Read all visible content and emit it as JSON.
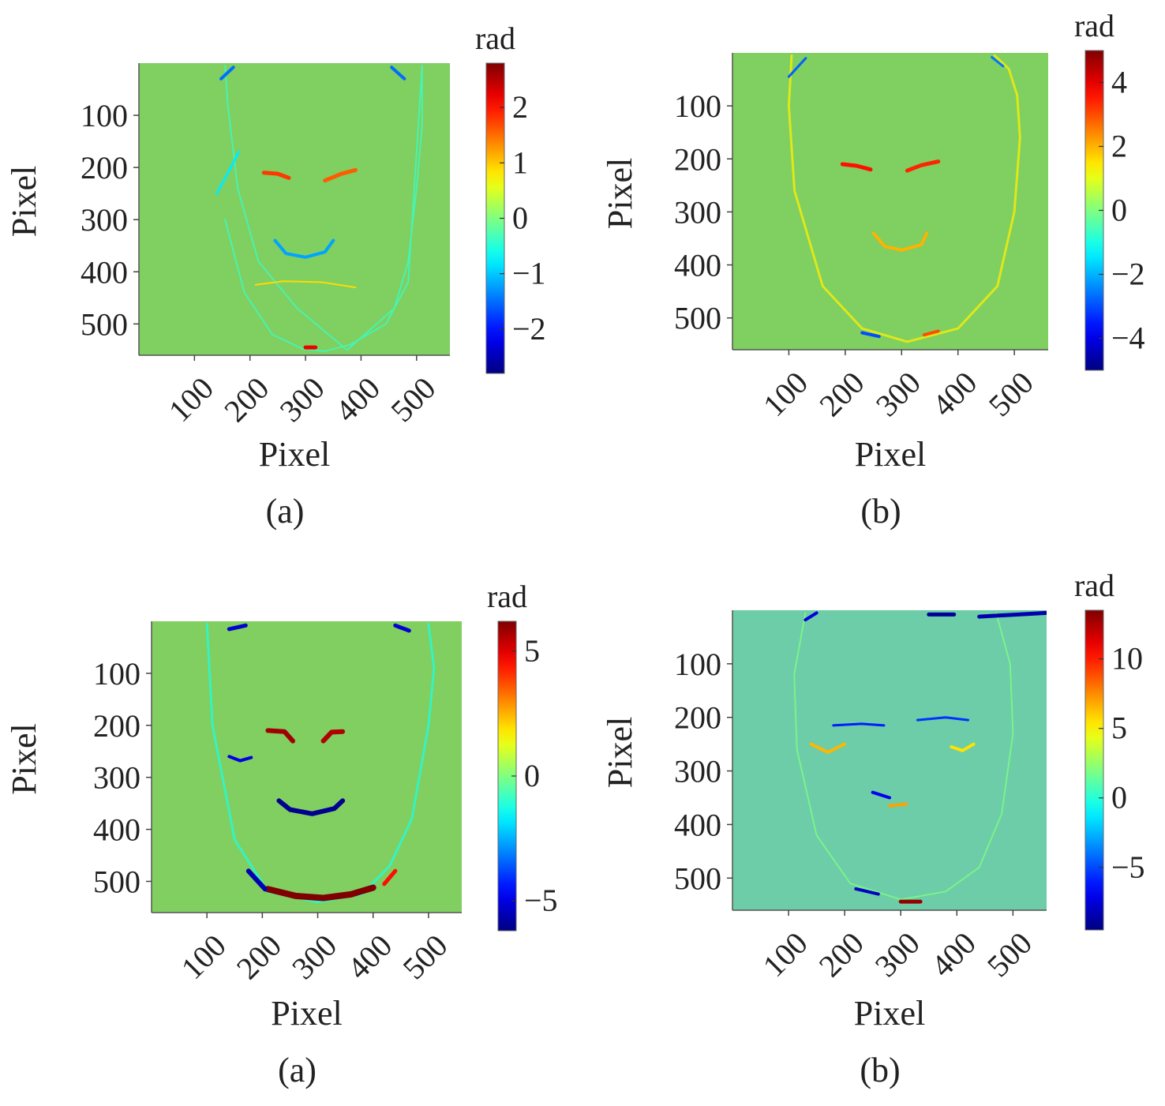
{
  "chart_data": [
    {
      "type": "heatmap",
      "panel_label": "(a)",
      "xlabel": "Pixel",
      "ylabel": "Pixel",
      "xticks": [
        100,
        200,
        300,
        400,
        500
      ],
      "yticks": [
        100,
        200,
        300,
        400,
        500
      ],
      "xlim": [
        0,
        560
      ],
      "ylim": [
        0,
        560
      ],
      "y_reversed": true,
      "colormap": "jet",
      "colorbar": {
        "title": "rad",
        "ticks": [
          -2,
          -1,
          0,
          1,
          2
        ],
        "range": [
          -2.8,
          2.8
        ]
      },
      "background_value": 0.3,
      "background_color": "#7fcf61",
      "features": [
        {
          "kind": "outline",
          "x": [
            155,
            160,
            178,
            215,
            285,
            375,
            460,
            485,
            500,
            510,
            510,
            485,
            445,
            380,
            335,
            295,
            240,
            190,
            155
          ],
          "y": [
            5,
            80,
            240,
            380,
            470,
            550,
            470,
            380,
            240,
            120,
            5,
            420,
            500,
            540,
            552,
            548,
            520,
            440,
            300
          ],
          "value": -0.4,
          "width": 2
        },
        {
          "kind": "stroke",
          "x": [
            140,
            158,
            180
          ],
          "y": [
            250,
            215,
            170
          ],
          "value": -0.8,
          "width": 3
        },
        {
          "kind": "stroke",
          "x": [
            225,
            250,
            270
          ],
          "y": [
            210,
            212,
            220
          ],
          "value": 1.8,
          "width": 5
        },
        {
          "kind": "stroke",
          "x": [
            335,
            365,
            390
          ],
          "y": [
            225,
            212,
            205
          ],
          "value": 1.6,
          "width": 5
        },
        {
          "kind": "stroke",
          "x": [
            245,
            265,
            300,
            335,
            350
          ],
          "y": [
            340,
            365,
            372,
            362,
            340
          ],
          "value": -1.2,
          "width": 4
        },
        {
          "kind": "stroke",
          "x": [
            300,
            318
          ],
          "y": [
            545,
            545
          ],
          "value": 2.2,
          "width": 5
        },
        {
          "kind": "stroke",
          "x": [
            148,
            170
          ],
          "y": [
            30,
            8
          ],
          "value": -1.5,
          "width": 4
        },
        {
          "kind": "stroke",
          "x": [
            455,
            478
          ],
          "y": [
            8,
            30
          ],
          "value": -1.5,
          "width": 4
        },
        {
          "kind": "stroke",
          "x": [
            210,
            260,
            330,
            390
          ],
          "y": [
            425,
            418,
            420,
            430
          ],
          "value": 0.9,
          "width": 2
        }
      ]
    },
    {
      "type": "heatmap",
      "panel_label": "(b)",
      "xlabel": "Pixel",
      "ylabel": "Pixel",
      "xticks": [
        100,
        200,
        300,
        400,
        500
      ],
      "yticks": [
        100,
        200,
        300,
        400,
        500
      ],
      "xlim": [
        0,
        560
      ],
      "ylim": [
        0,
        560
      ],
      "y_reversed": true,
      "colormap": "jet",
      "colorbar": {
        "title": "rad",
        "ticks": [
          -4,
          -2,
          0,
          2,
          4
        ],
        "range": [
          -5,
          5
        ]
      },
      "background_value": 0.5,
      "background_color": "#7fcf61",
      "features": [
        {
          "kind": "outline",
          "x": [
            105,
            100,
            110,
            160,
            230,
            310,
            400,
            470,
            500,
            510,
            505,
            490,
            465
          ],
          "y": [
            5,
            100,
            260,
            440,
            520,
            545,
            520,
            440,
            300,
            160,
            80,
            30,
            5
          ],
          "value": 1.4,
          "width": 3
        },
        {
          "kind": "stroke",
          "x": [
            195,
            220,
            245
          ],
          "y": [
            210,
            213,
            220
          ],
          "value": 3.6,
          "width": 5
        },
        {
          "kind": "stroke",
          "x": [
            310,
            335,
            365
          ],
          "y": [
            222,
            212,
            205
          ],
          "value": 3.4,
          "width": 5
        },
        {
          "kind": "stroke",
          "x": [
            250,
            270,
            300,
            335,
            345
          ],
          "y": [
            340,
            365,
            372,
            362,
            340
          ],
          "value": 2.0,
          "width": 4
        },
        {
          "kind": "stroke",
          "x": [
            230,
            260
          ],
          "y": [
            528,
            535
          ],
          "value": -3.0,
          "width": 4
        },
        {
          "kind": "stroke",
          "x": [
            340,
            365
          ],
          "y": [
            532,
            525
          ],
          "value": 3.0,
          "width": 4
        },
        {
          "kind": "stroke",
          "x": [
            100,
            130
          ],
          "y": [
            45,
            10
          ],
          "value": -2.8,
          "width": 3
        },
        {
          "kind": "stroke",
          "x": [
            460,
            480
          ],
          "y": [
            8,
            25
          ],
          "value": -2.6,
          "width": 3
        }
      ]
    },
    {
      "type": "heatmap",
      "panel_label": "(a)",
      "xlabel": "Pixel",
      "ylabel": "Pixel",
      "xticks": [
        100,
        200,
        300,
        400,
        500
      ],
      "yticks": [
        100,
        200,
        300,
        400,
        500
      ],
      "xlim": [
        0,
        560
      ],
      "ylim": [
        0,
        560
      ],
      "y_reversed": true,
      "colormap": "jet",
      "colorbar": {
        "title": "rad",
        "ticks": [
          -5,
          0,
          5
        ],
        "range": [
          -6.2,
          6.2
        ]
      },
      "background_value": 0.6,
      "background_color": "#80cf60",
      "features": [
        {
          "kind": "outline",
          "x": [
            100,
            110,
            150,
            210,
            300,
            380,
            430,
            470,
            500,
            510,
            500
          ],
          "y": [
            5,
            200,
            420,
            520,
            540,
            525,
            470,
            380,
            200,
            90,
            5
          ],
          "value": -1.2,
          "width": 3
        },
        {
          "kind": "stroke",
          "x": [
            210,
            240,
            255
          ],
          "y": [
            210,
            212,
            230
          ],
          "value": 5.8,
          "width": 6
        },
        {
          "kind": "stroke",
          "x": [
            310,
            325,
            345
          ],
          "y": [
            230,
            213,
            212
          ],
          "value": 5.6,
          "width": 6
        },
        {
          "kind": "stroke",
          "x": [
            140,
            160,
            180
          ],
          "y": [
            260,
            268,
            262
          ],
          "value": -5.0,
          "width": 4
        },
        {
          "kind": "stroke",
          "x": [
            230,
            250,
            290,
            330,
            345
          ],
          "y": [
            345,
            362,
            370,
            360,
            345
          ],
          "value": -6.0,
          "width": 6
        },
        {
          "kind": "stroke",
          "x": [
            210,
            260,
            310,
            360,
            400
          ],
          "y": [
            515,
            528,
            532,
            525,
            512
          ],
          "value": 6.2,
          "width": 8
        },
        {
          "kind": "stroke",
          "x": [
            175,
            205
          ],
          "y": [
            480,
            515
          ],
          "value": -5.6,
          "width": 6
        },
        {
          "kind": "stroke",
          "x": [
            420,
            440
          ],
          "y": [
            505,
            480
          ],
          "value": 4.5,
          "width": 5
        },
        {
          "kind": "stroke",
          "x": [
            140,
            170
          ],
          "y": [
            15,
            8
          ],
          "value": -5.2,
          "width": 5
        },
        {
          "kind": "stroke",
          "x": [
            440,
            465
          ],
          "y": [
            8,
            18
          ],
          "value": -5.2,
          "width": 5
        }
      ]
    },
    {
      "type": "heatmap",
      "panel_label": "(b)",
      "xlabel": "Pixel",
      "ylabel": "Pixel",
      "xticks": [
        100,
        200,
        300,
        400,
        500
      ],
      "yticks": [
        100,
        200,
        300,
        400,
        500
      ],
      "xlim": [
        0,
        560
      ],
      "ylim": [
        0,
        560
      ],
      "y_reversed": true,
      "colormap": "jet",
      "colorbar": {
        "title": "rad",
        "ticks": [
          -5,
          0,
          5,
          10
        ],
        "range": [
          -9.5,
          13.5
        ]
      },
      "background_value": 0.0,
      "background_color": "#6ccda8",
      "features": [
        {
          "kind": "outline",
          "x": [
            130,
            110,
            115,
            150,
            210,
            300,
            380,
            440,
            480,
            500,
            495,
            470
          ],
          "y": [
            5,
            120,
            260,
            420,
            510,
            540,
            525,
            480,
            380,
            230,
            100,
            5
          ],
          "value": 2.0,
          "width": 2
        },
        {
          "kind": "stroke",
          "x": [
            140,
            170,
            200
          ],
          "y": [
            250,
            265,
            250
          ],
          "value": 6.5,
          "width": 4
        },
        {
          "kind": "stroke",
          "x": [
            390,
            410,
            430
          ],
          "y": [
            255,
            262,
            250
          ],
          "value": 5.5,
          "width": 4
        },
        {
          "kind": "stroke",
          "x": [
            180,
            230,
            270
          ],
          "y": [
            215,
            212,
            215
          ],
          "value": -6.0,
          "width": 3
        },
        {
          "kind": "stroke",
          "x": [
            330,
            380,
            420
          ],
          "y": [
            205,
            200,
            205
          ],
          "value": -5.5,
          "width": 3
        },
        {
          "kind": "stroke",
          "x": [
            250,
            280
          ],
          "y": [
            340,
            350
          ],
          "value": -7.0,
          "width": 4
        },
        {
          "kind": "stroke",
          "x": [
            280,
            310
          ],
          "y": [
            365,
            362
          ],
          "value": 7.0,
          "width": 4
        },
        {
          "kind": "stroke",
          "x": [
            300,
            335
          ],
          "y": [
            544,
            544
          ],
          "value": 13.0,
          "width": 5
        },
        {
          "kind": "stroke",
          "x": [
            220,
            260
          ],
          "y": [
            520,
            530
          ],
          "value": -8.0,
          "width": 4
        },
        {
          "kind": "stroke",
          "x": [
            350,
            395
          ],
          "y": [
            8,
            8
          ],
          "value": -9.0,
          "width": 5
        },
        {
          "kind": "stroke",
          "x": [
            440,
            560
          ],
          "y": [
            12,
            5
          ],
          "value": -8.5,
          "width": 5
        },
        {
          "kind": "stroke",
          "x": [
            130,
            150
          ],
          "y": [
            18,
            5
          ],
          "value": -7.5,
          "width": 4
        }
      ]
    }
  ]
}
